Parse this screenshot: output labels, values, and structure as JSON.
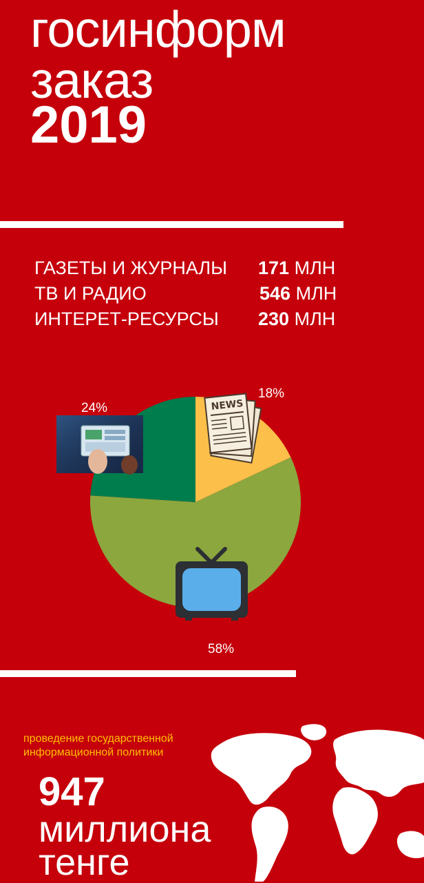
{
  "title": {
    "line1": "госинформ",
    "line2": "заказ",
    "year": "2019"
  },
  "budget": {
    "items": [
      {
        "label": "ГАЗЕТЫ И ЖУРНАЛЫ",
        "amount": "171",
        "unit": "МЛН"
      },
      {
        "label": "ТВ И РАДИО",
        "amount": "546",
        "unit": "МЛН"
      },
      {
        "label": "ИНТЕРЕТ-РЕСУРСЫ",
        "amount": "230",
        "unit": "МЛН"
      }
    ]
  },
  "chart_data": {
    "type": "pie",
    "categories": [
      "Газеты и журналы",
      "ТВ и радио",
      "Интернет-ресурсы"
    ],
    "values": [
      18,
      58,
      24
    ],
    "labels": [
      "18%",
      "58%",
      "24%"
    ],
    "colors": [
      "#fcbf49",
      "#8ba73e",
      "#007d4c"
    ],
    "icons": [
      "newspaper-icon",
      "tv-icon",
      "tablet-icon"
    ]
  },
  "footer": {
    "subtitle_line1": "проведение государственной",
    "subtitle_line2": "информационной политики",
    "total_number": "947",
    "total_word": "миллиона",
    "currency": "тенге"
  },
  "colors": {
    "background": "#c5000b",
    "accent_text": "#ffc000",
    "text": "#ffffff"
  }
}
